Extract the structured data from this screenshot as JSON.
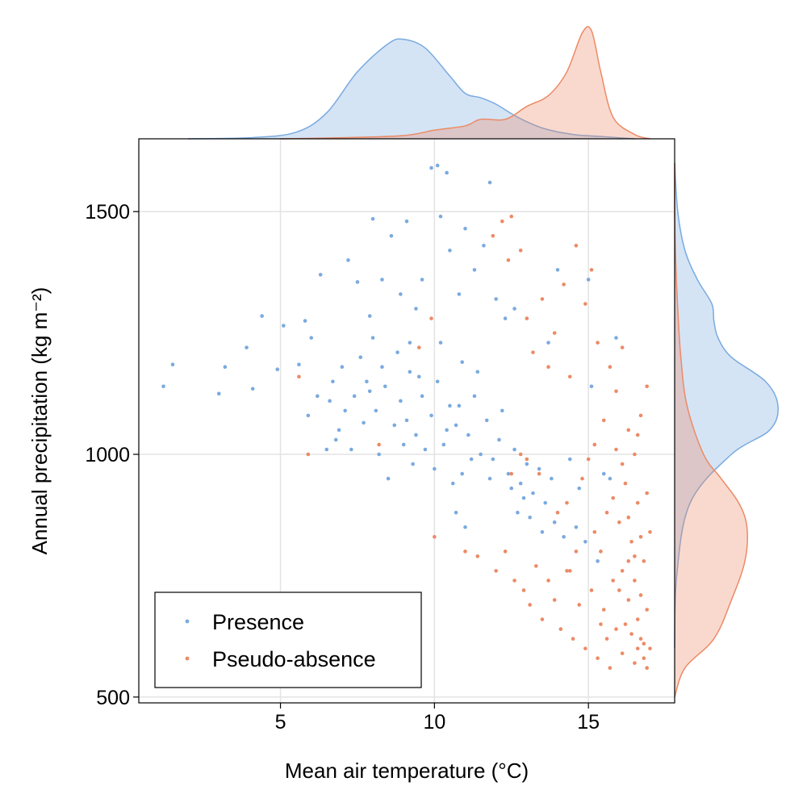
{
  "chart_data": {
    "type": "scatter",
    "title": "",
    "xlabel": "Mean air temperature (°C)",
    "ylabel": "Annual precipitation (kg m⁻²)",
    "xlim": [
      0.4,
      17.8
    ],
    "ylim": [
      488,
      1650
    ],
    "xticks": [
      5,
      10,
      15
    ],
    "yticks": [
      500,
      1000,
      1500
    ],
    "grid": true,
    "legend_position": "bottom-left",
    "marginals": "kernel density (top: x, right: y)",
    "series": [
      {
        "name": "Presence",
        "color": "#7aaadf",
        "points": [
          [
            1.2,
            1140
          ],
          [
            1.5,
            1185
          ],
          [
            3.0,
            1125
          ],
          [
            3.2,
            1180
          ],
          [
            3.9,
            1220
          ],
          [
            4.1,
            1135
          ],
          [
            4.4,
            1285
          ],
          [
            4.9,
            1175
          ],
          [
            5.1,
            1265
          ],
          [
            5.6,
            1185
          ],
          [
            5.8,
            1275
          ],
          [
            6.3,
            1370
          ],
          [
            6.0,
            1240
          ],
          [
            6.5,
            1010
          ],
          [
            6.8,
            1030
          ],
          [
            7.2,
            1400
          ],
          [
            7.5,
            1355
          ],
          [
            7.7,
            1065
          ],
          [
            7.9,
            1285
          ],
          [
            8.0,
            1485
          ],
          [
            8.3,
            1360
          ],
          [
            8.6,
            1450
          ],
          [
            8.9,
            1330
          ],
          [
            9.1,
            1480
          ],
          [
            9.2,
            1230
          ],
          [
            9.4,
            1300
          ],
          [
            9.6,
            1360
          ],
          [
            9.9,
            1590
          ],
          [
            10.1,
            1595
          ],
          [
            10.2,
            1490
          ],
          [
            10.4,
            1580
          ],
          [
            10.5,
            1420
          ],
          [
            10.8,
            1330
          ],
          [
            11.0,
            1465
          ],
          [
            11.3,
            1380
          ],
          [
            11.6,
            1430
          ],
          [
            11.8,
            1560
          ],
          [
            12.0,
            1320
          ],
          [
            12.3,
            1280
          ],
          [
            12.6,
            1300
          ],
          [
            7.0,
            1180
          ],
          [
            7.4,
            1120
          ],
          [
            7.8,
            1150
          ],
          [
            8.1,
            1090
          ],
          [
            8.4,
            1140
          ],
          [
            8.7,
            1060
          ],
          [
            8.9,
            1110
          ],
          [
            9.2,
            1170
          ],
          [
            9.4,
            1040
          ],
          [
            9.6,
            1120
          ],
          [
            9.9,
            1080
          ],
          [
            10.1,
            1150
          ],
          [
            10.3,
            1020
          ],
          [
            10.5,
            1100
          ],
          [
            10.7,
            1060
          ],
          [
            10.9,
            1190
          ],
          [
            11.1,
            1040
          ],
          [
            11.3,
            1120
          ],
          [
            11.5,
            1000
          ],
          [
            11.7,
            1070
          ],
          [
            11.9,
            990
          ],
          [
            12.1,
            1030
          ],
          [
            12.4,
            960
          ],
          [
            12.6,
            1010
          ],
          [
            12.8,
            940
          ],
          [
            13.0,
            980
          ],
          [
            13.2,
            920
          ],
          [
            13.4,
            970
          ],
          [
            13.6,
            900
          ],
          [
            13.8,
            950
          ],
          [
            6.6,
            1110
          ],
          [
            6.9,
            1050
          ],
          [
            7.3,
            1010
          ],
          [
            7.6,
            1200
          ],
          [
            8.0,
            1240
          ],
          [
            8.2,
            1000
          ],
          [
            8.5,
            950
          ],
          [
            8.8,
            1210
          ],
          [
            9.0,
            1020
          ],
          [
            9.3,
            980
          ],
          [
            9.7,
            1010
          ],
          [
            10.0,
            970
          ],
          [
            10.2,
            1230
          ],
          [
            10.6,
            940
          ],
          [
            10.9,
            960
          ],
          [
            11.2,
            990
          ],
          [
            11.4,
            1170
          ],
          [
            11.8,
            950
          ],
          [
            12.2,
            1090
          ],
          [
            12.7,
            880
          ],
          [
            13.1,
            870
          ],
          [
            13.5,
            840
          ],
          [
            13.9,
            860
          ],
          [
            14.2,
            830
          ],
          [
            14.6,
            850
          ],
          [
            14.9,
            820
          ],
          [
            15.3,
            780
          ],
          [
            15.7,
            950
          ],
          [
            15.9,
            1240
          ],
          [
            15.5,
            960
          ],
          [
            14.4,
            990
          ],
          [
            14.7,
            930
          ],
          [
            15.1,
            1140
          ],
          [
            13.7,
            1230
          ],
          [
            12.9,
            910
          ],
          [
            12.5,
            930
          ],
          [
            11.0,
            850
          ],
          [
            10.7,
            880
          ],
          [
            14.0,
            1380
          ],
          [
            15.0,
            1360
          ],
          [
            8.3,
            1180
          ],
          [
            9.5,
            1160
          ],
          [
            10.8,
            1100
          ],
          [
            7.1,
            1090
          ],
          [
            6.2,
            1120
          ],
          [
            5.9,
            1080
          ],
          [
            6.7,
            1150
          ],
          [
            7.9,
            1130
          ],
          [
            9.1,
            1070
          ],
          [
            10.4,
            1050
          ]
        ]
      },
      {
        "name": "Pseudo-absence",
        "color": "#ec8a66",
        "points": [
          [
            5.6,
            1160
          ],
          [
            5.9,
            1000
          ],
          [
            8.2,
            1020
          ],
          [
            9.5,
            1220
          ],
          [
            9.9,
            1280
          ],
          [
            10.0,
            830
          ],
          [
            11.0,
            800
          ],
          [
            11.4,
            790
          ],
          [
            11.9,
            1450
          ],
          [
            12.2,
            1480
          ],
          [
            12.4,
            1400
          ],
          [
            12.5,
            1490
          ],
          [
            12.8,
            1420
          ],
          [
            13.0,
            1280
          ],
          [
            13.2,
            1210
          ],
          [
            13.5,
            1320
          ],
          [
            13.7,
            1180
          ],
          [
            13.9,
            1250
          ],
          [
            14.2,
            1350
          ],
          [
            14.4,
            1160
          ],
          [
            14.6,
            1430
          ],
          [
            14.9,
            1310
          ],
          [
            15.1,
            1380
          ],
          [
            15.3,
            1230
          ],
          [
            15.5,
            1070
          ],
          [
            15.7,
            1180
          ],
          [
            15.9,
            1130
          ],
          [
            16.1,
            1220
          ],
          [
            16.3,
            1050
          ],
          [
            16.5,
            1000
          ],
          [
            16.7,
            1080
          ],
          [
            16.9,
            1140
          ],
          [
            12.0,
            760
          ],
          [
            12.3,
            800
          ],
          [
            12.6,
            740
          ],
          [
            12.9,
            720
          ],
          [
            13.1,
            690
          ],
          [
            13.3,
            770
          ],
          [
            13.5,
            660
          ],
          [
            13.7,
            740
          ],
          [
            13.9,
            700
          ],
          [
            14.1,
            640
          ],
          [
            14.3,
            760
          ],
          [
            14.5,
            620
          ],
          [
            14.7,
            690
          ],
          [
            14.9,
            600
          ],
          [
            15.1,
            720
          ],
          [
            15.3,
            580
          ],
          [
            15.5,
            680
          ],
          [
            15.7,
            560
          ],
          [
            15.9,
            640
          ],
          [
            16.1,
            590
          ],
          [
            16.3,
            700
          ],
          [
            16.5,
            570
          ],
          [
            16.7,
            620
          ],
          [
            16.9,
            560
          ],
          [
            17.0,
            600
          ],
          [
            15.2,
            840
          ],
          [
            15.4,
            800
          ],
          [
            15.6,
            880
          ],
          [
            15.8,
            910
          ],
          [
            16.0,
            860
          ],
          [
            16.2,
            940
          ],
          [
            16.4,
            820
          ],
          [
            16.6,
            900
          ],
          [
            16.8,
            780
          ],
          [
            17.0,
            840
          ],
          [
            16.1,
            760
          ],
          [
            16.3,
            780
          ],
          [
            16.5,
            740
          ],
          [
            16.7,
            710
          ],
          [
            16.9,
            680
          ],
          [
            16.2,
            650
          ],
          [
            16.4,
            630
          ],
          [
            16.6,
            660
          ],
          [
            16.8,
            610
          ],
          [
            16.0,
            720
          ],
          [
            15.8,
            740
          ],
          [
            16.5,
            790
          ],
          [
            16.7,
            830
          ],
          [
            16.3,
            870
          ],
          [
            16.9,
            920
          ],
          [
            16.1,
            980
          ],
          [
            15.9,
            1010
          ],
          [
            16.6,
            1040
          ],
          [
            14.0,
            880
          ],
          [
            14.3,
            900
          ],
          [
            14.8,
            950
          ],
          [
            15.0,
            990
          ],
          [
            15.2,
            1020
          ],
          [
            13.4,
            960
          ],
          [
            13.0,
            990
          ],
          [
            12.8,
            1000
          ],
          [
            12.5,
            960
          ],
          [
            14.6,
            800
          ],
          [
            14.4,
            760
          ],
          [
            15.6,
            620
          ],
          [
            15.4,
            650
          ],
          [
            16.8,
            580
          ],
          [
            16.6,
            600
          ]
        ]
      }
    ],
    "marginal_x_density": {
      "Presence": {
        "x": [
          2.0,
          4.0,
          5.5,
          6.5,
          7.5,
          8.5,
          9.0,
          9.7,
          10.5,
          11.0,
          11.5,
          12.0,
          12.7,
          13.5,
          14.5,
          15.5,
          16.5
        ],
        "density": [
          0.0,
          0.01,
          0.06,
          0.24,
          0.62,
          0.88,
          0.92,
          0.84,
          0.58,
          0.42,
          0.38,
          0.32,
          0.2,
          0.1,
          0.04,
          0.02,
          0.0
        ]
      },
      "Pseudo-absence": {
        "x": [
          5.0,
          7.0,
          9.0,
          10.0,
          11.0,
          11.5,
          12.3,
          13.0,
          13.7,
          14.3,
          14.8,
          15.1,
          15.4,
          15.8,
          16.5,
          17.0
        ],
        "density": [
          0.0,
          0.01,
          0.03,
          0.08,
          0.12,
          0.18,
          0.18,
          0.3,
          0.4,
          0.62,
          0.98,
          1.0,
          0.62,
          0.2,
          0.04,
          0.0
        ]
      }
    },
    "marginal_y_density": {
      "Presence": {
        "y": [
          600,
          750,
          900,
          1000,
          1050,
          1100,
          1150,
          1200,
          1240,
          1275,
          1310,
          1360,
          1420,
          1500,
          1600
        ],
        "density": [
          0.0,
          0.02,
          0.15,
          0.55,
          0.92,
          1.0,
          0.88,
          0.55,
          0.42,
          0.38,
          0.36,
          0.22,
          0.1,
          0.03,
          0.0
        ]
      },
      "Pseudo-absence": {
        "y": [
          500,
          560,
          620,
          700,
          780,
          850,
          900,
          950,
          1000,
          1100,
          1200,
          1300,
          1400,
          1500,
          1600
        ],
        "density": [
          0.0,
          0.1,
          0.38,
          0.55,
          0.68,
          0.7,
          0.62,
          0.45,
          0.28,
          0.12,
          0.06,
          0.03,
          0.01,
          0.0,
          0.0
        ]
      }
    }
  }
}
